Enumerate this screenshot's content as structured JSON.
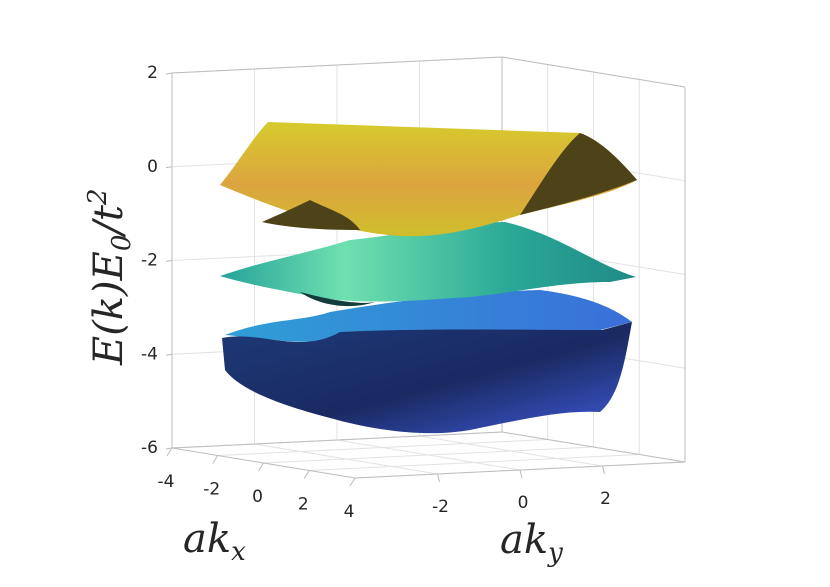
{
  "chart_data": {
    "type": "surface",
    "xlabel": [
      "ak",
      "x"
    ],
    "ylabel": [
      "ak",
      "y"
    ],
    "zlabel": [
      "E(k)E",
      "0",
      "/t",
      "2"
    ],
    "xlim": [
      -4,
      4
    ],
    "xticks": [
      -4,
      -2,
      0,
      2,
      4
    ],
    "ylim": [
      -4,
      4
    ],
    "yticks": [
      -2,
      0,
      2
    ],
    "zlim": [
      -6,
      2
    ],
    "zticks": [
      2,
      0,
      -2,
      -4,
      -6
    ],
    "grid": true
  }
}
